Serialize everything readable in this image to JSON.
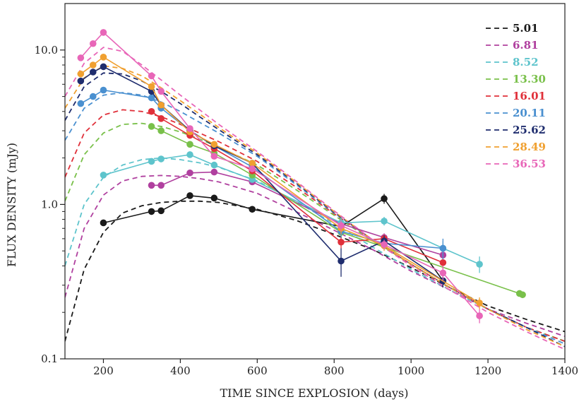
{
  "chart_data": {
    "type": "line",
    "title": "",
    "xlabel": "TIME SINCE EXPLOSION (days)",
    "ylabel": "FLUX DENSITY (mJy)",
    "xlim": [
      100,
      1400
    ],
    "ylim": [
      0.1,
      20
    ],
    "yscale": "log",
    "x_ticks": [
      200,
      400,
      600,
      800,
      1000,
      1200,
      1400
    ],
    "y_ticks": [
      0.1,
      1.0,
      10.0
    ],
    "y_tick_labels": [
      "0.1",
      "1.0",
      "10.0"
    ],
    "legend_position": "top-right",
    "grid": false,
    "series": [
      {
        "name": "5.01",
        "color": "#1a1a1a",
        "x": [
          200,
          325,
          350,
          425,
          488,
          587,
          818,
          930,
          1083
        ],
        "y": [
          0.76,
          0.9,
          0.91,
          1.14,
          1.1,
          0.93,
          0.72,
          1.09,
          0.32
        ],
        "yerr": [
          0.03,
          0.04,
          0.04,
          0.05,
          0.05,
          0.04,
          0.05,
          0.08,
          0.03
        ],
        "model_x": [
          100,
          150,
          200,
          250,
          300,
          350,
          400,
          450,
          500,
          600,
          700,
          800,
          900,
          1000,
          1100,
          1200,
          1300,
          1400
        ],
        "model_y": [
          0.13,
          0.38,
          0.66,
          0.88,
          0.98,
          1.03,
          1.05,
          1.05,
          1.03,
          0.93,
          0.79,
          0.64,
          0.51,
          0.39,
          0.29,
          0.22,
          0.18,
          0.15
        ]
      },
      {
        "name": "6.81",
        "color": "#b0409f",
        "x": [
          325,
          350,
          425,
          488,
          587,
          818,
          930,
          1083
        ],
        "y": [
          1.33,
          1.33,
          1.6,
          1.62,
          1.4,
          0.75,
          0.61,
          0.47
        ],
        "yerr": [
          0.05,
          0.05,
          0.06,
          0.06,
          0.05,
          0.05,
          0.04,
          0.04
        ],
        "model_x": [
          100,
          150,
          200,
          250,
          300,
          350,
          400,
          450,
          500,
          600,
          700,
          800,
          900,
          1000,
          1100,
          1200,
          1300,
          1400
        ],
        "model_y": [
          0.25,
          0.7,
          1.15,
          1.42,
          1.52,
          1.54,
          1.52,
          1.47,
          1.4,
          1.18,
          0.9,
          0.68,
          0.51,
          0.37,
          0.28,
          0.21,
          0.17,
          0.14
        ]
      },
      {
        "name": "8.52",
        "color": "#5ec4cc",
        "x": [
          200,
          325,
          350,
          425,
          488,
          587,
          818,
          930,
          1083,
          1178
        ],
        "y": [
          1.55,
          1.9,
          1.97,
          2.1,
          1.8,
          1.45,
          0.76,
          0.78,
          0.52,
          0.41
        ],
        "yerr": [
          0.05,
          0.06,
          0.06,
          0.07,
          0.06,
          0.05,
          0.06,
          0.05,
          0.06,
          0.05
        ],
        "model_x": [
          100,
          150,
          200,
          250,
          300,
          350,
          400,
          450,
          500,
          600,
          700,
          800,
          900,
          1000,
          1100,
          1200,
          1300,
          1400
        ],
        "model_y": [
          0.4,
          1.0,
          1.5,
          1.8,
          1.95,
          2.0,
          1.95,
          1.86,
          1.74,
          1.42,
          1.05,
          0.75,
          0.53,
          0.38,
          0.28,
          0.21,
          0.16,
          0.13
        ]
      },
      {
        "name": "13.30",
        "color": "#79c04a",
        "x": [
          325,
          350,
          425,
          488,
          587,
          818,
          1282,
          1290
        ],
        "y": [
          3.2,
          3.0,
          2.45,
          2.15,
          1.55,
          0.66,
          0.265,
          0.26
        ],
        "yerr": [
          0.08,
          0.08,
          0.07,
          0.06,
          0.05,
          0.05,
          0.01,
          0.01
        ],
        "model_x": [
          100,
          150,
          200,
          250,
          300,
          350,
          400,
          450,
          500,
          600,
          700,
          800,
          900,
          1000,
          1100,
          1200,
          1300,
          1400
        ],
        "model_y": [
          1.05,
          2.1,
          2.9,
          3.3,
          3.35,
          3.2,
          2.95,
          2.65,
          2.35,
          1.8,
          1.25,
          0.85,
          0.58,
          0.41,
          0.29,
          0.21,
          0.16,
          0.13
        ]
      },
      {
        "name": "16.01",
        "color": "#e0303a",
        "x": [
          325,
          350,
          425,
          488,
          587,
          818,
          930,
          1083
        ],
        "y": [
          4.0,
          3.6,
          2.8,
          2.3,
          1.65,
          0.57,
          0.6,
          0.42
        ],
        "yerr": [
          0.1,
          0.09,
          0.08,
          0.07,
          0.05,
          0.05,
          0.04,
          0.04
        ],
        "model_x": [
          100,
          150,
          200,
          250,
          300,
          350,
          400,
          450,
          500,
          600,
          700,
          800,
          900,
          1000,
          1100,
          1200,
          1300,
          1400
        ],
        "model_y": [
          1.5,
          2.9,
          3.8,
          4.1,
          4.0,
          3.7,
          3.3,
          2.9,
          2.55,
          1.9,
          1.3,
          0.87,
          0.59,
          0.41,
          0.29,
          0.21,
          0.16,
          0.13
        ]
      },
      {
        "name": "20.11",
        "color": "#4a90d0",
        "x": [
          141,
          173,
          200,
          325,
          350,
          425,
          488,
          587,
          818,
          930,
          1083
        ],
        "y": [
          4.5,
          5.0,
          5.5,
          4.9,
          4.2,
          3.0,
          2.4,
          1.75,
          0.67,
          0.56,
          0.52
        ],
        "yerr": [
          0.12,
          0.12,
          0.13,
          0.12,
          0.1,
          0.08,
          0.07,
          0.05,
          0.06,
          0.04,
          0.08
        ],
        "model_x": [
          100,
          150,
          200,
          250,
          300,
          350,
          400,
          450,
          500,
          600,
          700,
          800,
          900,
          1000,
          1100,
          1200,
          1300,
          1400
        ],
        "model_y": [
          2.6,
          4.2,
          5.1,
          5.3,
          5.1,
          4.6,
          4.0,
          3.4,
          2.9,
          2.05,
          1.35,
          0.88,
          0.59,
          0.41,
          0.29,
          0.21,
          0.16,
          0.125
        ]
      },
      {
        "name": "25.62",
        "color": "#1f2d6e",
        "x": [
          141,
          173,
          200,
          325,
          350,
          425,
          488,
          587,
          818,
          930,
          1083
        ],
        "y": [
          6.3,
          7.2,
          7.8,
          5.4,
          4.4,
          3.0,
          2.4,
          1.85,
          0.43,
          0.58,
          0.32
        ],
        "yerr": [
          0.15,
          0.16,
          0.18,
          0.14,
          0.12,
          0.08,
          0.07,
          0.05,
          0.09,
          0.05,
          0.03
        ],
        "model_x": [
          100,
          150,
          200,
          250,
          300,
          350,
          400,
          450,
          500,
          600,
          700,
          800,
          900,
          1000,
          1100,
          1200,
          1300,
          1400
        ],
        "model_y": [
          3.5,
          5.8,
          7.1,
          7.0,
          6.3,
          5.4,
          4.5,
          3.7,
          3.05,
          2.1,
          1.38,
          0.89,
          0.59,
          0.41,
          0.29,
          0.21,
          0.16,
          0.12
        ]
      },
      {
        "name": "28.49",
        "color": "#f0a030",
        "x": [
          141,
          173,
          200,
          325,
          350,
          425,
          488,
          587,
          818,
          930,
          1178
        ],
        "y": [
          7.0,
          8.0,
          9.0,
          5.8,
          4.4,
          2.95,
          2.45,
          1.85,
          0.7,
          0.54,
          0.23
        ],
        "yerr": [
          0.16,
          0.18,
          0.2,
          0.14,
          0.12,
          0.08,
          0.07,
          0.05,
          0.06,
          0.04,
          0.02
        ],
        "model_x": [
          100,
          150,
          200,
          250,
          300,
          350,
          400,
          450,
          500,
          600,
          700,
          800,
          900,
          1000,
          1100,
          1200,
          1300,
          1400
        ],
        "model_y": [
          4.2,
          6.6,
          7.9,
          7.6,
          6.8,
          5.7,
          4.7,
          3.85,
          3.15,
          2.15,
          1.4,
          0.9,
          0.59,
          0.41,
          0.29,
          0.21,
          0.155,
          0.12
        ]
      },
      {
        "name": "36.53",
        "color": "#e866b8",
        "x": [
          141,
          173,
          200,
          325,
          350,
          425,
          488,
          587,
          818,
          930,
          1083,
          1178
        ],
        "y": [
          8.9,
          11.0,
          13.0,
          6.8,
          5.4,
          3.1,
          2.05,
          1.7,
          0.73,
          0.55,
          0.36,
          0.19
        ],
        "yerr": [
          0.2,
          0.25,
          0.3,
          0.16,
          0.14,
          0.08,
          0.06,
          0.05,
          0.06,
          0.04,
          0.04,
          0.02
        ],
        "model_x": [
          100,
          150,
          200,
          250,
          300,
          350,
          400,
          450,
          500,
          600,
          700,
          800,
          900,
          1000,
          1100,
          1200,
          1300,
          1400
        ],
        "model_y": [
          5.0,
          8.2,
          10.4,
          9.8,
          8.0,
          6.4,
          5.1,
          4.1,
          3.3,
          2.2,
          1.42,
          0.91,
          0.59,
          0.4,
          0.28,
          0.2,
          0.15,
          0.115
        ]
      }
    ]
  }
}
